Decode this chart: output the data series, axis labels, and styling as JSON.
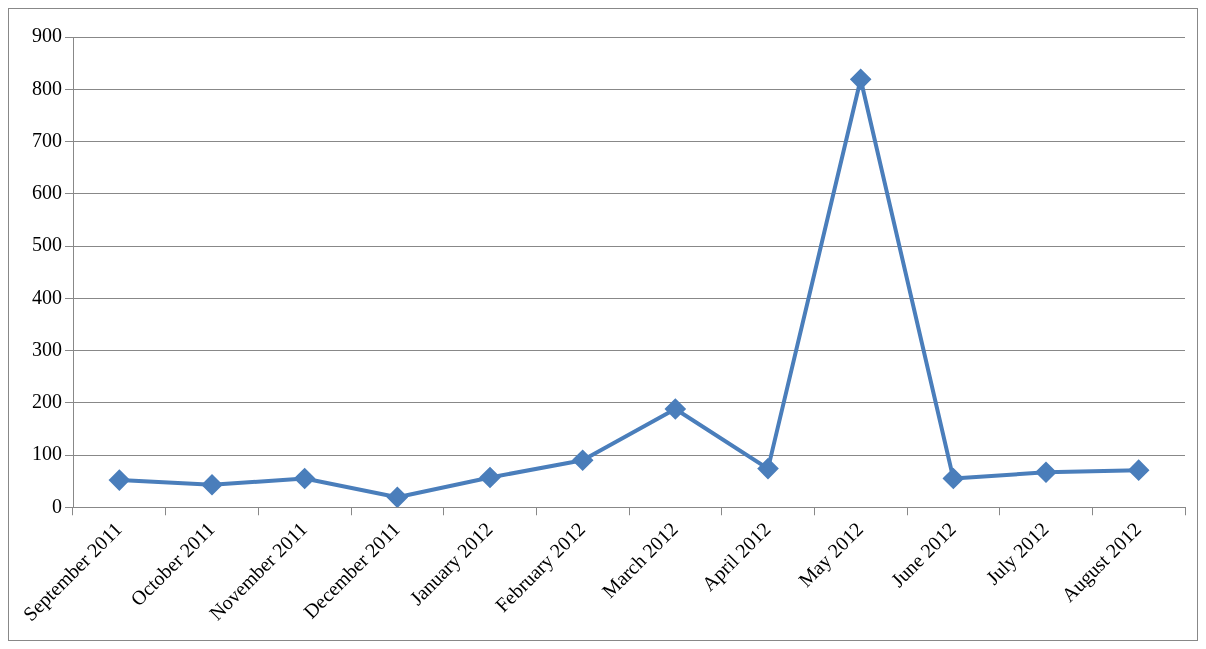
{
  "chart_data": {
    "type": "line",
    "categories": [
      "September 2011",
      "October 2011",
      "November 2011",
      "December 2011",
      "January 2012",
      "February 2012",
      "March 2012",
      "April 2012",
      "May 2012",
      "June 2012",
      "July 2012",
      "August 2012"
    ],
    "series": [
      {
        "color": "#4a7ebb",
        "values": [
          52,
          43,
          55,
          19,
          57,
          90,
          188,
          74,
          819,
          55,
          67,
          71
        ]
      }
    ],
    "ylim": [
      0,
      900
    ],
    "yticks": [
      0,
      100,
      200,
      300,
      400,
      500,
      600,
      700,
      800,
      900
    ],
    "grid": "y",
    "marker": "diamond",
    "line_style": "solid"
  }
}
